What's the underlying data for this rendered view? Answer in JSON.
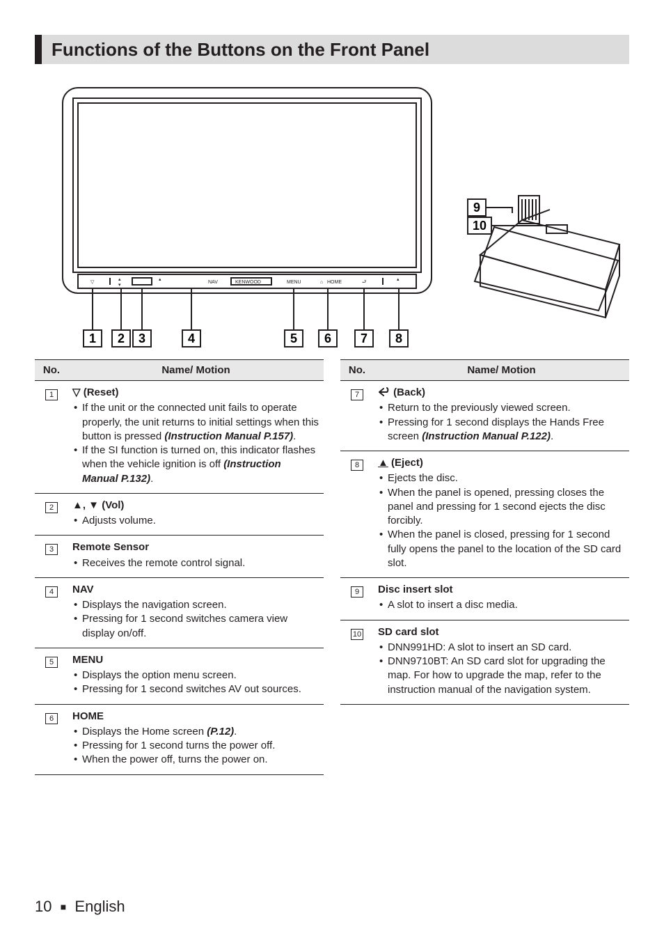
{
  "page": {
    "title": "Functions of the Buttons on the Front Panel",
    "footer_page": "10",
    "footer_lang": "English"
  },
  "diagram": {
    "callouts_bottom": [
      "1",
      "2",
      "3",
      "4",
      "5",
      "6",
      "7",
      "8"
    ],
    "callouts_right": [
      "9",
      "10"
    ],
    "panel_labels": [
      "NAV",
      "KENWOOD",
      "MENU",
      "HOME"
    ]
  },
  "headers": {
    "no": "No.",
    "name": "Name/ Motion"
  },
  "left_rows": [
    {
      "num": "1",
      "title_glyph": "▽",
      "title_text": " (Reset)",
      "bullets": [
        {
          "pre": "If the unit or the connected unit fails to operate properly, the unit returns to initial settings when this button is pressed ",
          "ref": "(Instruction Manual P.157)",
          "post": "."
        },
        {
          "pre": "If the SI function is turned on, this indicator flashes when the vehicle ignition is off ",
          "ref": "(Instruction Manual P.132)",
          "post": "."
        }
      ]
    },
    {
      "num": "2",
      "title_glyph": "▲, ▼",
      "title_text": " (Vol)",
      "bullets": [
        {
          "pre": "Adjusts volume.",
          "ref": "",
          "post": ""
        }
      ]
    },
    {
      "num": "3",
      "title_glyph": "",
      "title_text": "Remote Sensor",
      "bullets": [
        {
          "pre": "Receives the remote control signal.",
          "ref": "",
          "post": ""
        }
      ]
    },
    {
      "num": "4",
      "title_glyph": "",
      "title_text": "NAV",
      "bullets": [
        {
          "pre": "Displays the navigation screen.",
          "ref": "",
          "post": ""
        },
        {
          "pre": "Pressing for 1 second switches camera view display on/off.",
          "ref": "",
          "post": ""
        }
      ]
    },
    {
      "num": "5",
      "title_glyph": "",
      "title_text": "MENU",
      "bullets": [
        {
          "pre": "Displays the option menu screen.",
          "ref": "",
          "post": ""
        },
        {
          "pre": "Pressing for 1 second switches AV out sources.",
          "ref": "",
          "post": ""
        }
      ]
    },
    {
      "num": "6",
      "title_glyph": "",
      "title_text": "HOME",
      "bullets": [
        {
          "pre": "Displays the Home screen ",
          "ref": "(P.12)",
          "post": "."
        },
        {
          "pre": "Pressing for 1 second turns the power off.",
          "ref": "",
          "post": ""
        },
        {
          "pre": "When the power off, turns the power on.",
          "ref": "",
          "post": ""
        }
      ]
    }
  ],
  "right_rows": [
    {
      "num": "7",
      "title_svg": "back",
      "title_text": " (Back)",
      "bullets": [
        {
          "pre": "Return to the previously viewed screen.",
          "ref": "",
          "post": ""
        },
        {
          "pre": "Pressing for 1 second displays the Hands Free screen ",
          "ref": "(Instruction Manual P.122)",
          "post": "."
        }
      ]
    },
    {
      "num": "8",
      "title_glyph": "▲",
      "title_underline": true,
      "title_text": " (Eject)",
      "bullets": [
        {
          "pre": "Ejects the disc.",
          "ref": "",
          "post": ""
        },
        {
          "pre": "When the panel is opened, pressing closes the panel and pressing for 1 second ejects the disc forcibly.",
          "ref": "",
          "post": ""
        },
        {
          "pre": "When the panel is closed, pressing for 1 second fully opens the panel to the location of the SD card slot.",
          "ref": "",
          "post": ""
        }
      ]
    },
    {
      "num": "9",
      "title_glyph": "",
      "title_text": "Disc insert slot",
      "bullets": [
        {
          "pre": "A slot to insert a disc media.",
          "ref": "",
          "post": ""
        }
      ]
    },
    {
      "num": "10",
      "title_glyph": "",
      "title_text": "SD card slot",
      "bullets": [
        {
          "pre": "DNN991HD: A slot to insert an SD card.",
          "ref": "",
          "post": ""
        },
        {
          "pre": "DNN9710BT: An SD card slot for upgrading the map. For how to upgrade the map, refer to the instruction manual of the navigation system.",
          "ref": "",
          "post": ""
        }
      ]
    }
  ]
}
